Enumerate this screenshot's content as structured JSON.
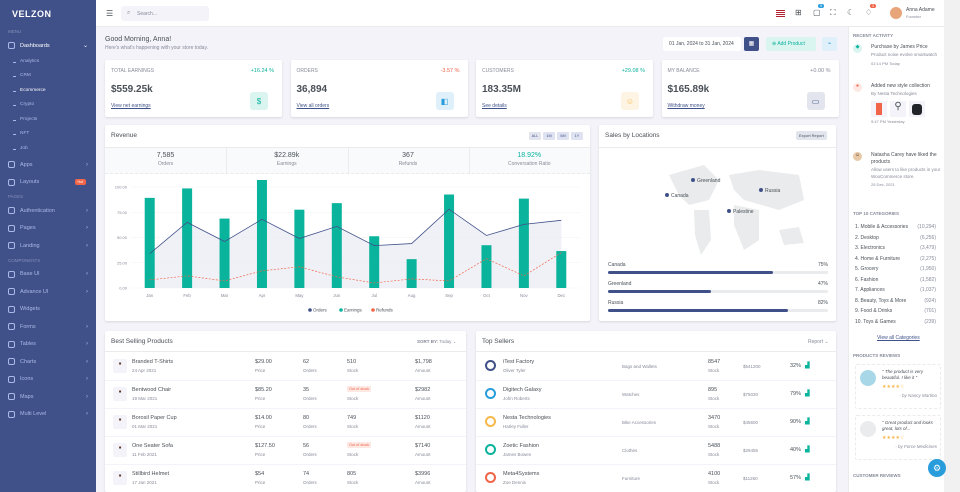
{
  "brand": "VELZON",
  "sidebar": {
    "menu_title": "Menu",
    "dashboards": "Dashboards",
    "subs": [
      "Analytics",
      "CRM",
      "Ecommerce",
      "Crypto",
      "Projects",
      "NFT",
      "Job"
    ],
    "apps": "Apps",
    "layouts": "Layouts",
    "hot": "Hot",
    "pages_title": "Pages",
    "authentication": "Authentication",
    "pages": "Pages",
    "landing": "Landing",
    "components_title": "Components",
    "base_ui": "Base UI",
    "advance_ui": "Advance UI",
    "widgets": "Widgets",
    "forms": "Forms",
    "tables": "Tables",
    "charts": "Charts",
    "icons": "Icons",
    "maps": "Maps",
    "multi_level": "Multi Level"
  },
  "topbar": {
    "search_placeholder": "Search...",
    "cart_count": "5",
    "notif_count": "3",
    "user_name": "Anna Adame",
    "user_role": "Founder"
  },
  "greeting": {
    "title": "Good Morning, Anna!",
    "subtitle": "Here's what's happening with your store today.",
    "date_range": "01 Jan, 2024 to 31 Jan, 2024",
    "add_product": "Add Product"
  },
  "stats": [
    {
      "title": "Total Earnings",
      "change": "+16.24 %",
      "value": "$559.25k",
      "link": "View net earnings",
      "color": "#0ab39c",
      "icon": "$",
      "bg": "#daf4f0"
    },
    {
      "title": "Orders",
      "change": "-3.57 %",
      "value": "36,894",
      "link": "View all orders",
      "color": "#f06548",
      "icon": "◧",
      "bg": "#dff0fa"
    },
    {
      "title": "Customers",
      "change": "+29.08 %",
      "value": "183.35M",
      "link": "See details",
      "color": "#0ab39c",
      "icon": "☺",
      "bg": "#fef4e4"
    },
    {
      "title": "My Balance",
      "change": "+0.00 %",
      "value": "$165.89k",
      "link": "Withdraw money",
      "color": "#878a99",
      "icon": "▭",
      "bg": "#e2e5ed"
    }
  ],
  "revenue": {
    "title": "Revenue",
    "filters": [
      "ALL",
      "1M",
      "6M",
      "1Y"
    ],
    "summary": [
      {
        "value": "7,585",
        "label": "Orders"
      },
      {
        "value": "$22.89k",
        "label": "Earnings"
      },
      {
        "value": "367",
        "label": "Refunds"
      },
      {
        "value": "18.92%",
        "label": "Conversation Ratio"
      }
    ],
    "legend": [
      "Orders",
      "Earnings",
      "Refunds"
    ]
  },
  "chart_data": {
    "type": "bar",
    "categories": [
      "Jan",
      "Feb",
      "Mar",
      "Apr",
      "May",
      "Jun",
      "Jul",
      "Aug",
      "Sep",
      "Oct",
      "Nov",
      "Dec"
    ],
    "yticks": [
      "0.00",
      "25.00",
      "50.00",
      "75.00",
      "100.00"
    ],
    "ylim": [
      0,
      100
    ],
    "series": [
      {
        "name": "Orders",
        "type": "area",
        "values": [
          34,
          65,
          46,
          68,
          49,
          61,
          42,
          44,
          78,
          52,
          63,
          67
        ]
      },
      {
        "name": "Earnings",
        "type": "bar",
        "values": [
          89.25,
          98.58,
          68.74,
          108.87,
          77.54,
          84.03,
          51.24,
          28.57,
          92.57,
          42.36,
          88.51,
          36.57
        ]
      },
      {
        "name": "Refunds",
        "type": "line",
        "values": [
          8,
          12,
          7,
          17,
          21,
          11,
          5,
          9,
          7,
          29,
          12,
          35
        ]
      }
    ],
    "colors": {
      "Orders": "#405189",
      "Earnings": "#0ab39c",
      "Refunds": "#f06548"
    }
  },
  "locations": {
    "title": "Sales by Locations",
    "export": "Export Report",
    "markers": [
      "Greenland",
      "Russia",
      "Canada",
      "Palestine"
    ],
    "bars": [
      {
        "name": "Canada",
        "pct": "75%",
        "value": 75
      },
      {
        "name": "Greenland",
        "pct": "47%",
        "value": 47
      },
      {
        "name": "Russia",
        "pct": "82%",
        "value": 82
      }
    ]
  },
  "best_selling": {
    "title": "Best Selling Products",
    "sort_label": "SORT BY:",
    "sort_value": "Today",
    "rows": [
      {
        "name": "Branded T-Shirts",
        "date": "24 Apr 2021",
        "price": "$29.00",
        "orders": "62",
        "stock": "510",
        "amount": "$1,798",
        "out": false
      },
      {
        "name": "Bentwood Chair",
        "date": "19 Mar 2021",
        "price": "$85.20",
        "orders": "35",
        "stock": "",
        "amount": "$2982",
        "out": true
      },
      {
        "name": "Borosil Paper Cup",
        "date": "01 Mar 2021",
        "price": "$14.00",
        "orders": "80",
        "stock": "749",
        "amount": "$1120",
        "out": false
      },
      {
        "name": "One Seater Sofa",
        "date": "11 Feb 2021",
        "price": "$127.50",
        "orders": "56",
        "stock": "",
        "amount": "$7140",
        "out": true
      },
      {
        "name": "Stillbird Helmet",
        "date": "17 Jan 2021",
        "price": "$54",
        "orders": "74",
        "stock": "805",
        "amount": "$3996",
        "out": false
      }
    ],
    "labels": {
      "price": "Price",
      "orders": "Orders",
      "stock": "Stock",
      "amount": "Amount",
      "out": "Out of stock"
    }
  },
  "top_sellers": {
    "title": "Top Sellers",
    "report": "Report",
    "rows": [
      {
        "name": "iTest Factory",
        "person": "Oliver Tyler",
        "category": "Bags and Wallets",
        "stock": "8547",
        "amount": "$541200",
        "pct": "32%"
      },
      {
        "name": "Digitech Galaxy",
        "person": "John Roberts",
        "category": "Watches",
        "stock": "895",
        "amount": "$75030",
        "pct": "79%"
      },
      {
        "name": "Nesta Technologies",
        "person": "Harley Fuller",
        "category": "Bike Accessories",
        "stock": "3470",
        "amount": "$45600",
        "pct": "90%"
      },
      {
        "name": "Zoetic Fashion",
        "person": "James Bowen",
        "category": "Clothes",
        "stock": "5488",
        "amount": "$29456",
        "pct": "40%"
      },
      {
        "name": "Meta4Systems",
        "person": "Zoe Dennis",
        "category": "Furniture",
        "stock": "4100",
        "amount": "$11260",
        "pct": "57%"
      }
    ],
    "stock_label": "Stock"
  },
  "activity": {
    "title": "Recent Activity",
    "items": [
      {
        "title": "Purchase by James Price",
        "desc": "Product noise evolve smartwatch",
        "time": "02:14 PM Today"
      },
      {
        "title": "Added new style collection",
        "desc": "By Nesta Technologies",
        "time": "9:47 PM Yesterday"
      },
      {
        "title": "Natasha Carey have liked the products",
        "desc": "Allow users to like products in your WooCommerce store.",
        "time": "25 Dec, 2021"
      }
    ]
  },
  "categories": {
    "title": "Top 10 Categories",
    "items": [
      {
        "name": "1. Mobile & Accessories",
        "count": "(10,294)"
      },
      {
        "name": "2. Desktop",
        "count": "(6,256)"
      },
      {
        "name": "3. Electronics",
        "count": "(3,479)"
      },
      {
        "name": "4. Home & Furniture",
        "count": "(2,275)"
      },
      {
        "name": "5. Grocery",
        "count": "(1,950)"
      },
      {
        "name": "6. Fashion",
        "count": "(1,582)"
      },
      {
        "name": "7. Appliances",
        "count": "(1,037)"
      },
      {
        "name": "8. Beauty, Toys & More",
        "count": "(924)"
      },
      {
        "name": "9. Food & Drinks",
        "count": "(701)"
      },
      {
        "name": "10. Toys & Games",
        "count": "(239)"
      }
    ],
    "view_all": "View all Categories"
  },
  "reviews": {
    "title": "Products Reviews",
    "items": [
      {
        "text": "\" The product is very beautiful. I like it \"",
        "by": "- by Nancy Martino"
      },
      {
        "text": "\" Great product and looks great, lots of...",
        "by": "- by Force Medicines"
      }
    ],
    "stars": "★★★★☆",
    "customer_title": "Customer Reviews"
  }
}
